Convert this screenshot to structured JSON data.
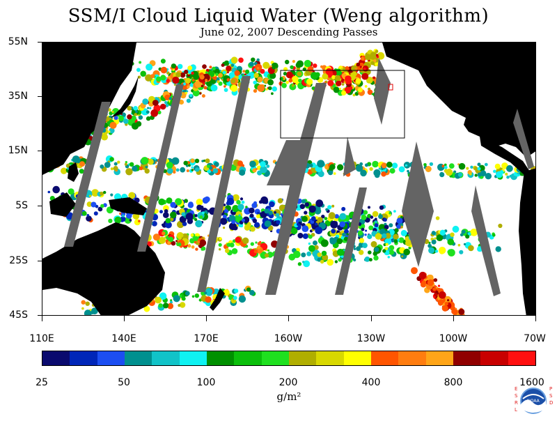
{
  "title": "SSM/I Cloud Liquid Water (Weng algorithm)",
  "subtitle": "June 02, 2007  Descending Passes",
  "lat_labels": [
    "55N",
    "35N",
    "15N",
    "5S",
    "25S",
    "45S"
  ],
  "lon_labels": [
    "110E",
    "140E",
    "170E",
    "160W",
    "130W",
    "100W",
    "70W"
  ],
  "colorbar": {
    "colors": [
      "#0a0a6e",
      "#0026b8",
      "#1c4ef2",
      "#00908f",
      "#11c3c8",
      "#0ff2f2",
      "#009000",
      "#0bbf0b",
      "#1fe01f",
      "#b0ae00",
      "#d8d800",
      "#ffff00",
      "#ff5500",
      "#ff7d10",
      "#ffa518",
      "#900000",
      "#c80000",
      "#ff1010"
    ],
    "labels": [
      "25",
      "50",
      "100",
      "200",
      "400",
      "800",
      "1600"
    ]
  },
  "units": "g/m²",
  "logo": {
    "center_text": "NOAA",
    "left_letters": "ESRL",
    "right_letters": "PSD"
  }
}
